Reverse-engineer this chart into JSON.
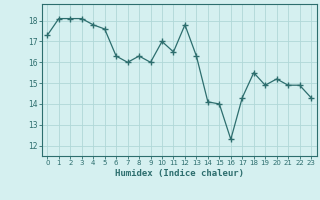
{
  "x": [
    0,
    1,
    2,
    3,
    4,
    5,
    6,
    7,
    8,
    9,
    10,
    11,
    12,
    13,
    14,
    15,
    16,
    17,
    18,
    19,
    20,
    21,
    22,
    23
  ],
  "y": [
    17.3,
    18.1,
    18.1,
    18.1,
    17.8,
    17.6,
    16.3,
    16.0,
    16.3,
    16.0,
    17.0,
    16.5,
    17.8,
    16.3,
    14.1,
    14.0,
    12.3,
    14.3,
    15.5,
    14.9,
    15.2,
    14.9,
    14.9,
    14.3
  ],
  "line_color": "#2d6e6e",
  "marker": "+",
  "marker_size": 4,
  "bg_color": "#d5f0f0",
  "grid_color": "#b0d8d8",
  "xlabel": "Humidex (Indice chaleur)",
  "ylim": [
    11.5,
    18.8
  ],
  "xlim": [
    -0.5,
    23.5
  ],
  "yticks": [
    12,
    13,
    14,
    15,
    16,
    17,
    18
  ],
  "xticks": [
    0,
    1,
    2,
    3,
    4,
    5,
    6,
    7,
    8,
    9,
    10,
    11,
    12,
    13,
    14,
    15,
    16,
    17,
    18,
    19,
    20,
    21,
    22,
    23
  ]
}
